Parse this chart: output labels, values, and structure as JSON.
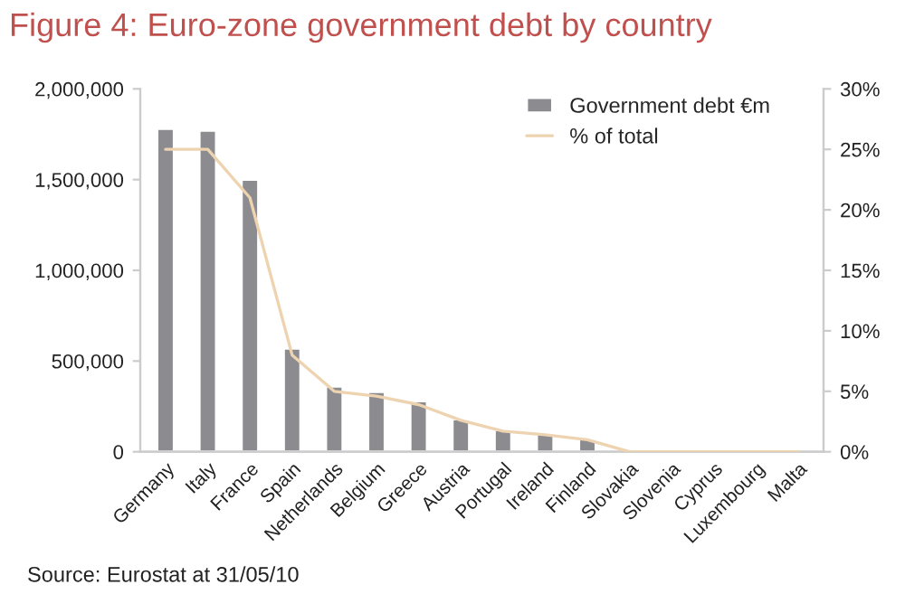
{
  "chart_data": {
    "type": "bar",
    "title": "Figure 4: Euro-zone government debt by country",
    "categories": [
      "Germany",
      "Italy",
      "France",
      "Spain",
      "Netherlands",
      "Belgium",
      "Greece",
      "Austria",
      "Portugal",
      "Ireland",
      "Finland",
      "Slovakia",
      "Slovenia",
      "Cyprus",
      "Luxembourg",
      "Malta"
    ],
    "series": [
      {
        "name": "Government debt €m",
        "color": "#8c8c90",
        "values": [
          1780000,
          1770000,
          1500000,
          570000,
          360000,
          330000,
          280000,
          180000,
          120000,
          100000,
          70000,
          null,
          null,
          null,
          null,
          null
        ]
      },
      {
        "name": "% of total",
        "type": "line",
        "axis": "y2",
        "color": "#eed3b0",
        "values": [
          25,
          25,
          21,
          8,
          5,
          4.6,
          3.9,
          2.6,
          1.7,
          1.4,
          1,
          0,
          0,
          0,
          0,
          0
        ]
      }
    ],
    "ylim": [
      0,
      2000000
    ],
    "yticks": [
      {
        "value": 0,
        "label": "0"
      },
      {
        "value": 500000,
        "label": "500,000"
      },
      {
        "value": 1000000,
        "label": "1,000,000"
      },
      {
        "value": 1500000,
        "label": "1,500,000"
      },
      {
        "value": 2000000,
        "label": "2,000,000"
      }
    ],
    "y2lim": [
      0,
      30
    ],
    "y2ticks": [
      {
        "value": 0,
        "label": "0%"
      },
      {
        "value": 5,
        "label": "5%"
      },
      {
        "value": 10,
        "label": "10%"
      },
      {
        "value": 15,
        "label": "15%"
      },
      {
        "value": 20,
        "label": "20%"
      },
      {
        "value": 25,
        "label": "25%"
      },
      {
        "value": 30,
        "label": "30%"
      }
    ],
    "legend": "top right",
    "grid": false,
    "annotations": [
      "Source: Eurostat at 31/05/10"
    ]
  }
}
